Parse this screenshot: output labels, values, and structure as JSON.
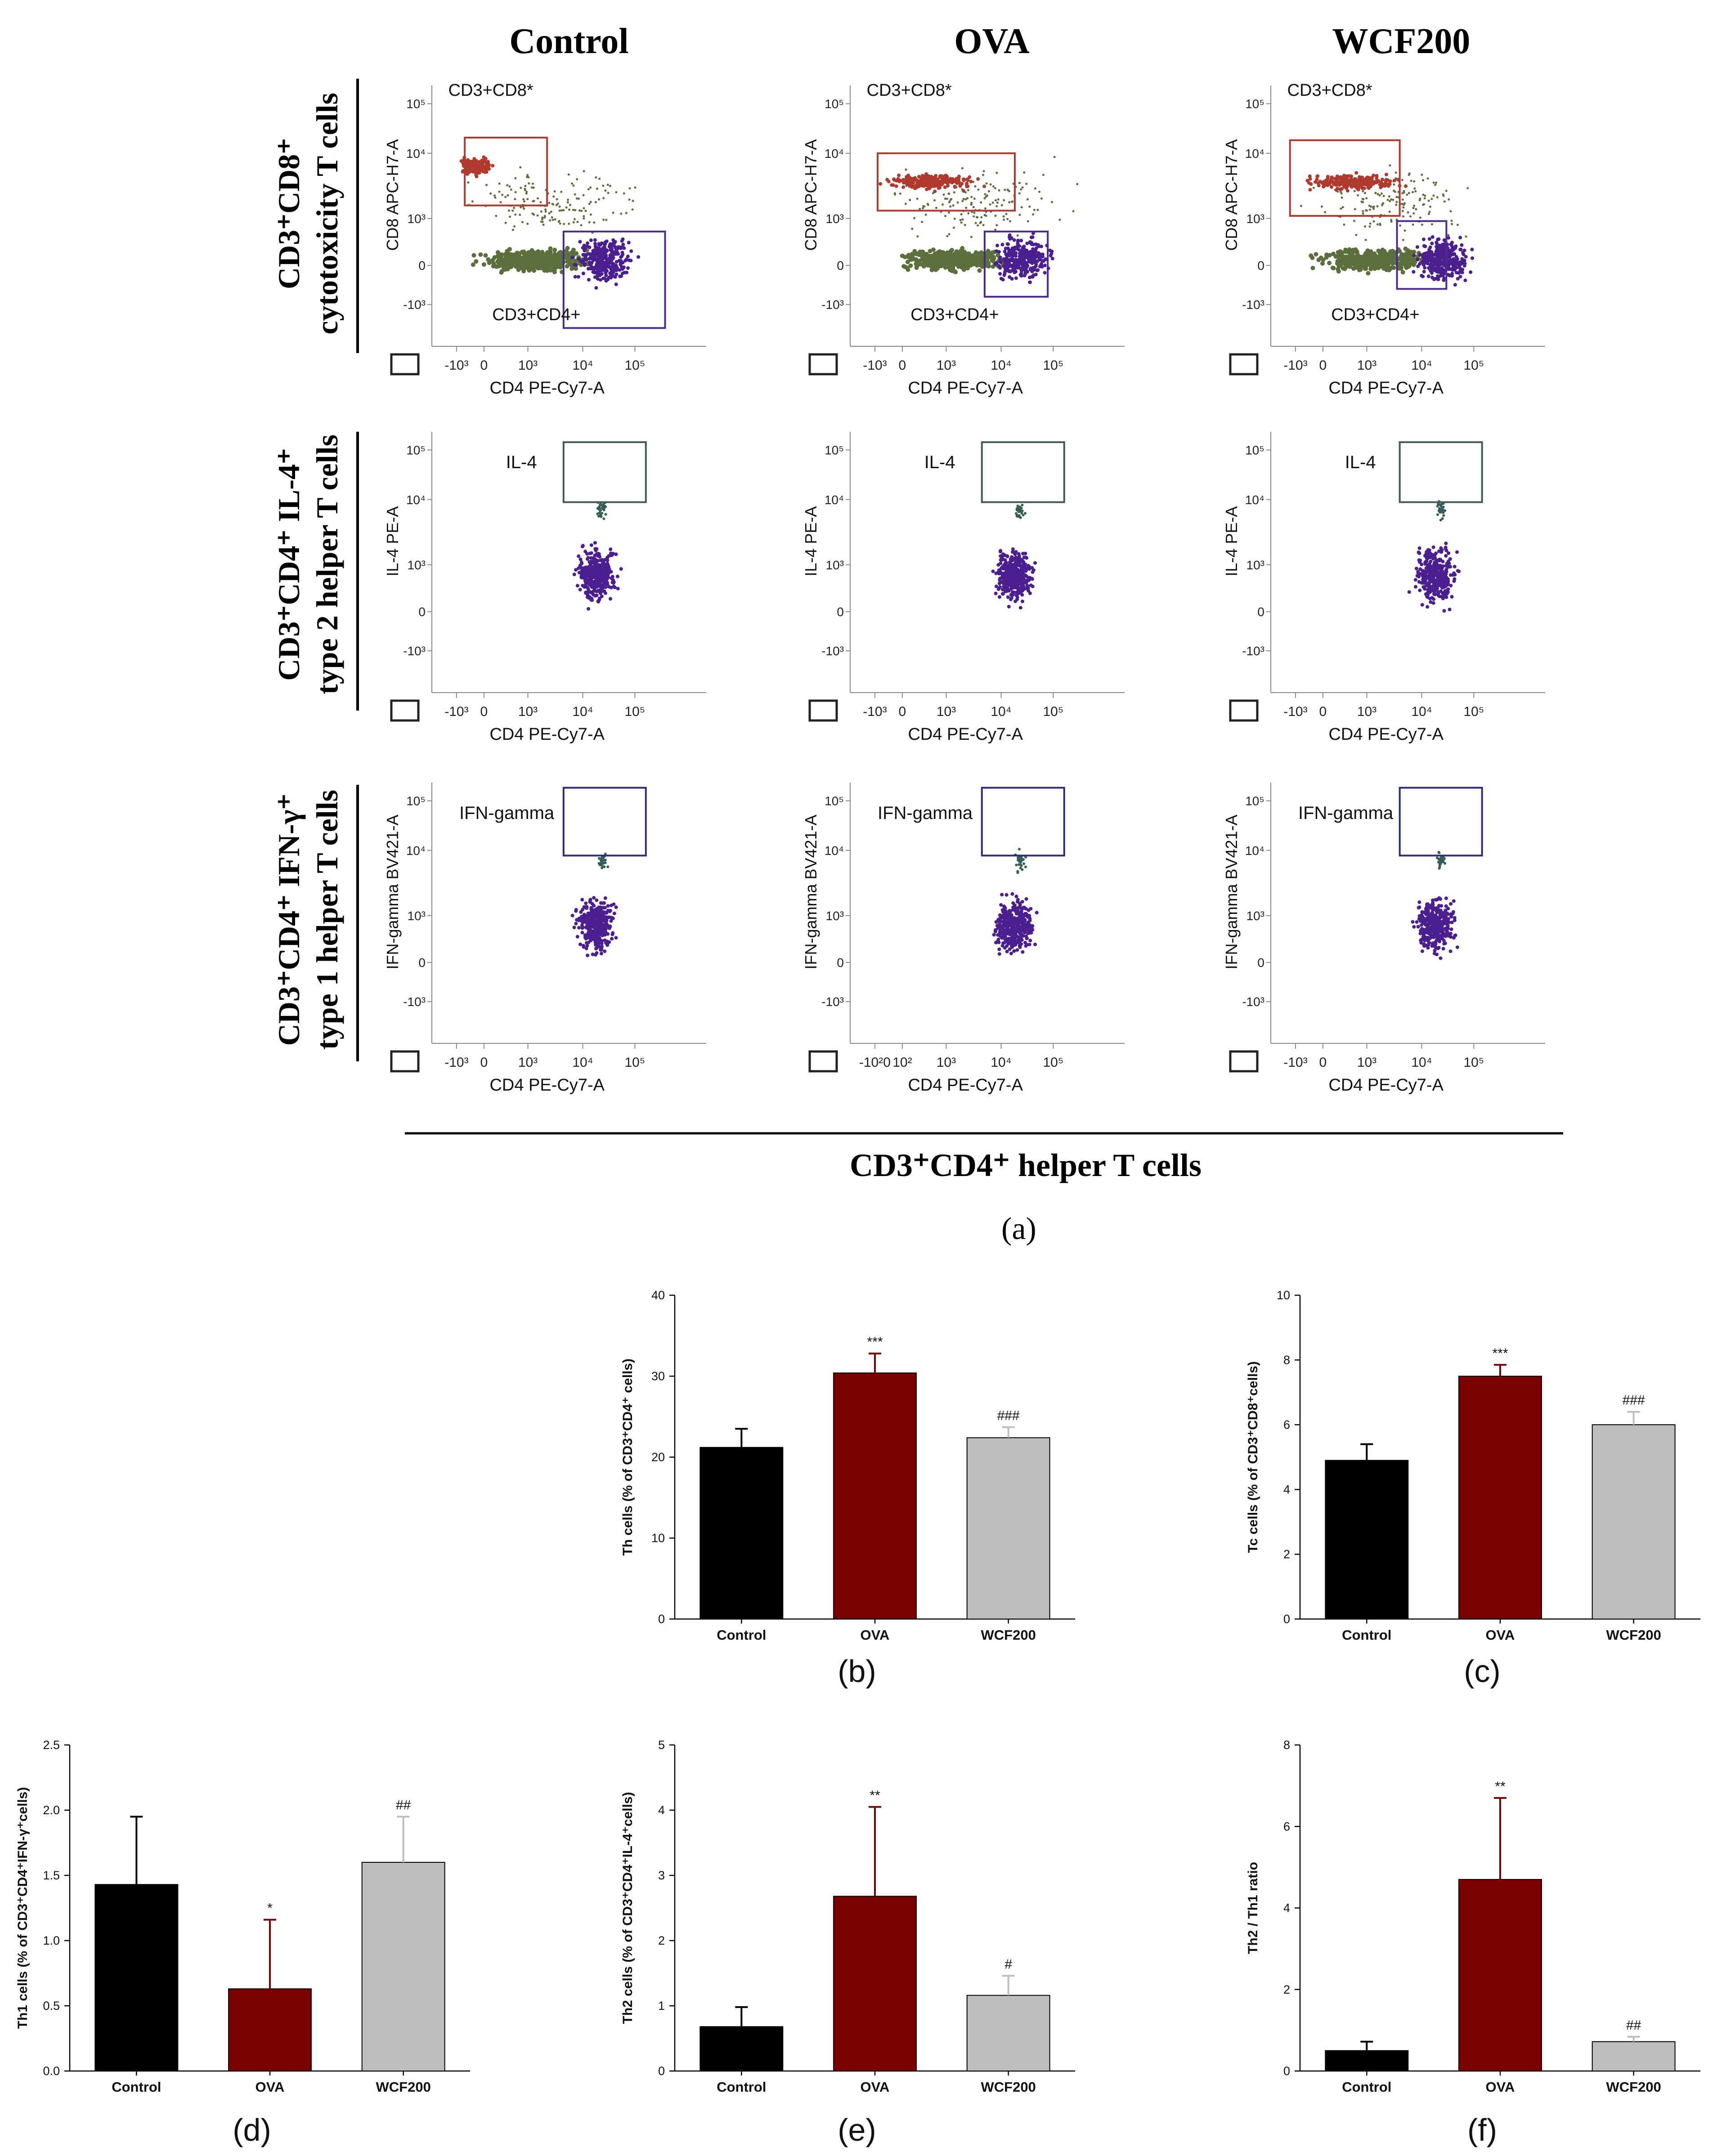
{
  "colors": {
    "control": "#000000",
    "ova": "#7b0000",
    "wcf200": "#bdbdbd",
    "cd8_gate": "#b03a2e",
    "cd4_gate": "#4b2a8f",
    "il4_gate": "#3e5c53",
    "ifn_gate": "#2e2a7a",
    "pop_green": "#5c6e3c",
    "pop_red": "#b03a2e",
    "pop_purple": "#4b1f8f"
  },
  "panel_a": {
    "column_headers": [
      "Control",
      "OVA",
      "WCF200"
    ],
    "row_labels": [
      {
        "line1": "CD3⁺CD8⁺",
        "line2": "cytotoxicity T cells"
      },
      {
        "line1": "CD3⁺CD4⁺ IL-4⁺",
        "line2": "type 2 helper T cells"
      },
      {
        "line1": "CD3⁺CD4⁺ IFN-γ⁺",
        "line2": "type 1 helper T cells"
      }
    ],
    "bottom_label": "CD3⁺CD4⁺ helper T cells",
    "caption": "(a)",
    "row1": {
      "x_label": "CD4 PE-Cy7-A",
      "y_label": "CD8 APC-H7-A",
      "gate_cd8": "CD3+CD8*",
      "gate_cd4": "CD3+CD4+",
      "x_ticks": [
        "-10³",
        "0",
        "10³",
        "10⁴",
        "10⁵"
      ],
      "y_ticks": [
        "10⁵",
        "10⁴",
        "10³",
        "0",
        "-10³"
      ]
    },
    "row2": {
      "x_label": "CD4 PE-Cy7-A",
      "y_label": "IL-4 PE-A",
      "gate": "IL-4",
      "x_ticks": [
        "-10³",
        "0",
        "10³",
        "10⁴",
        "10⁵"
      ],
      "y_ticks": [
        "10⁵",
        "10⁴",
        "10³",
        "0",
        "-10³"
      ]
    },
    "row3": {
      "x_label": "CD4 PE-Cy7-A",
      "y_label": "IFN-gamma BV421-A",
      "gate": "IFN-gamma",
      "x_ticks": [
        "-10³",
        "0",
        "10³",
        "10⁴",
        "10⁵"
      ],
      "x_ticks_ova": [
        "-10²0",
        "10²",
        "10³",
        "10⁴",
        "10⁵"
      ],
      "y_ticks": [
        "10⁵",
        "10⁴",
        "10³",
        "0",
        "-10³"
      ]
    }
  },
  "chart_data": [
    {
      "id": "b",
      "type": "bar",
      "caption": "(b)",
      "categories": [
        "Control",
        "OVA",
        "WCF200"
      ],
      "values": [
        21.2,
        30.4,
        22.4
      ],
      "errors": [
        2.3,
        2.4,
        1.3
      ],
      "annotations": [
        "",
        "***",
        "###"
      ],
      "ylabel": "Th cells (% of CD3⁺CD4⁺ cells)",
      "ylim": [
        0,
        40
      ],
      "yticks": [
        0,
        10,
        20,
        30,
        40
      ],
      "ytick_labels": [
        "0",
        "10",
        "20",
        "30",
        "40"
      ]
    },
    {
      "id": "c",
      "type": "bar",
      "caption": "(c)",
      "categories": [
        "Control",
        "OVA",
        "WCF200"
      ],
      "values": [
        4.9,
        7.5,
        6.0
      ],
      "errors": [
        0.5,
        0.35,
        0.4
      ],
      "annotations": [
        "",
        "***",
        "###"
      ],
      "ylabel": "Tc cells (% of CD3⁺CD8⁺cells)",
      "ylim": [
        0,
        10
      ],
      "yticks": [
        0,
        2,
        4,
        6,
        8,
        10
      ],
      "ytick_labels": [
        "0",
        "2",
        "4",
        "6",
        "8",
        "10"
      ]
    },
    {
      "id": "d",
      "type": "bar",
      "caption": "(d)",
      "categories": [
        "Control",
        "OVA",
        "WCF200"
      ],
      "values": [
        1.43,
        0.63,
        1.6
      ],
      "errors": [
        0.52,
        0.53,
        0.35
      ],
      "annotations": [
        "",
        "*",
        "##"
      ],
      "ylabel": "Th1 cells (% of CD3⁺CD4⁺IFN-γ⁺cells)",
      "ylim": [
        0,
        2.5
      ],
      "yticks": [
        0,
        0.5,
        1.0,
        1.5,
        2.0,
        2.5
      ],
      "ytick_labels": [
        "0.0",
        "0.5",
        "1.0",
        "1.5",
        "2.0",
        "2.5"
      ]
    },
    {
      "id": "e",
      "type": "bar",
      "caption": "(e)",
      "categories": [
        "Control",
        "OVA",
        "WCF200"
      ],
      "values": [
        0.68,
        2.68,
        1.16
      ],
      "errors": [
        0.3,
        1.37,
        0.3
      ],
      "annotations": [
        "",
        "**",
        "#"
      ],
      "ylabel": "Th2 cells (% of CD3⁺CD4⁺IL-4⁺cells)",
      "ylim": [
        0,
        5
      ],
      "yticks": [
        0,
        1,
        2,
        3,
        4,
        5
      ],
      "ytick_labels": [
        "0",
        "1",
        "2",
        "3",
        "4",
        "5"
      ]
    },
    {
      "id": "f",
      "type": "bar",
      "caption": "(f)",
      "categories": [
        "Control",
        "OVA",
        "WCF200"
      ],
      "values": [
        0.5,
        4.7,
        0.72
      ],
      "errors": [
        0.22,
        2.0,
        0.12
      ],
      "annotations": [
        "",
        "**",
        "##"
      ],
      "ylabel": "Th2 / Th1 ratio",
      "ylim": [
        0,
        8
      ],
      "yticks": [
        0,
        2,
        4,
        6,
        8
      ],
      "ytick_labels": [
        "0",
        "2",
        "4",
        "6",
        "8"
      ]
    }
  ]
}
